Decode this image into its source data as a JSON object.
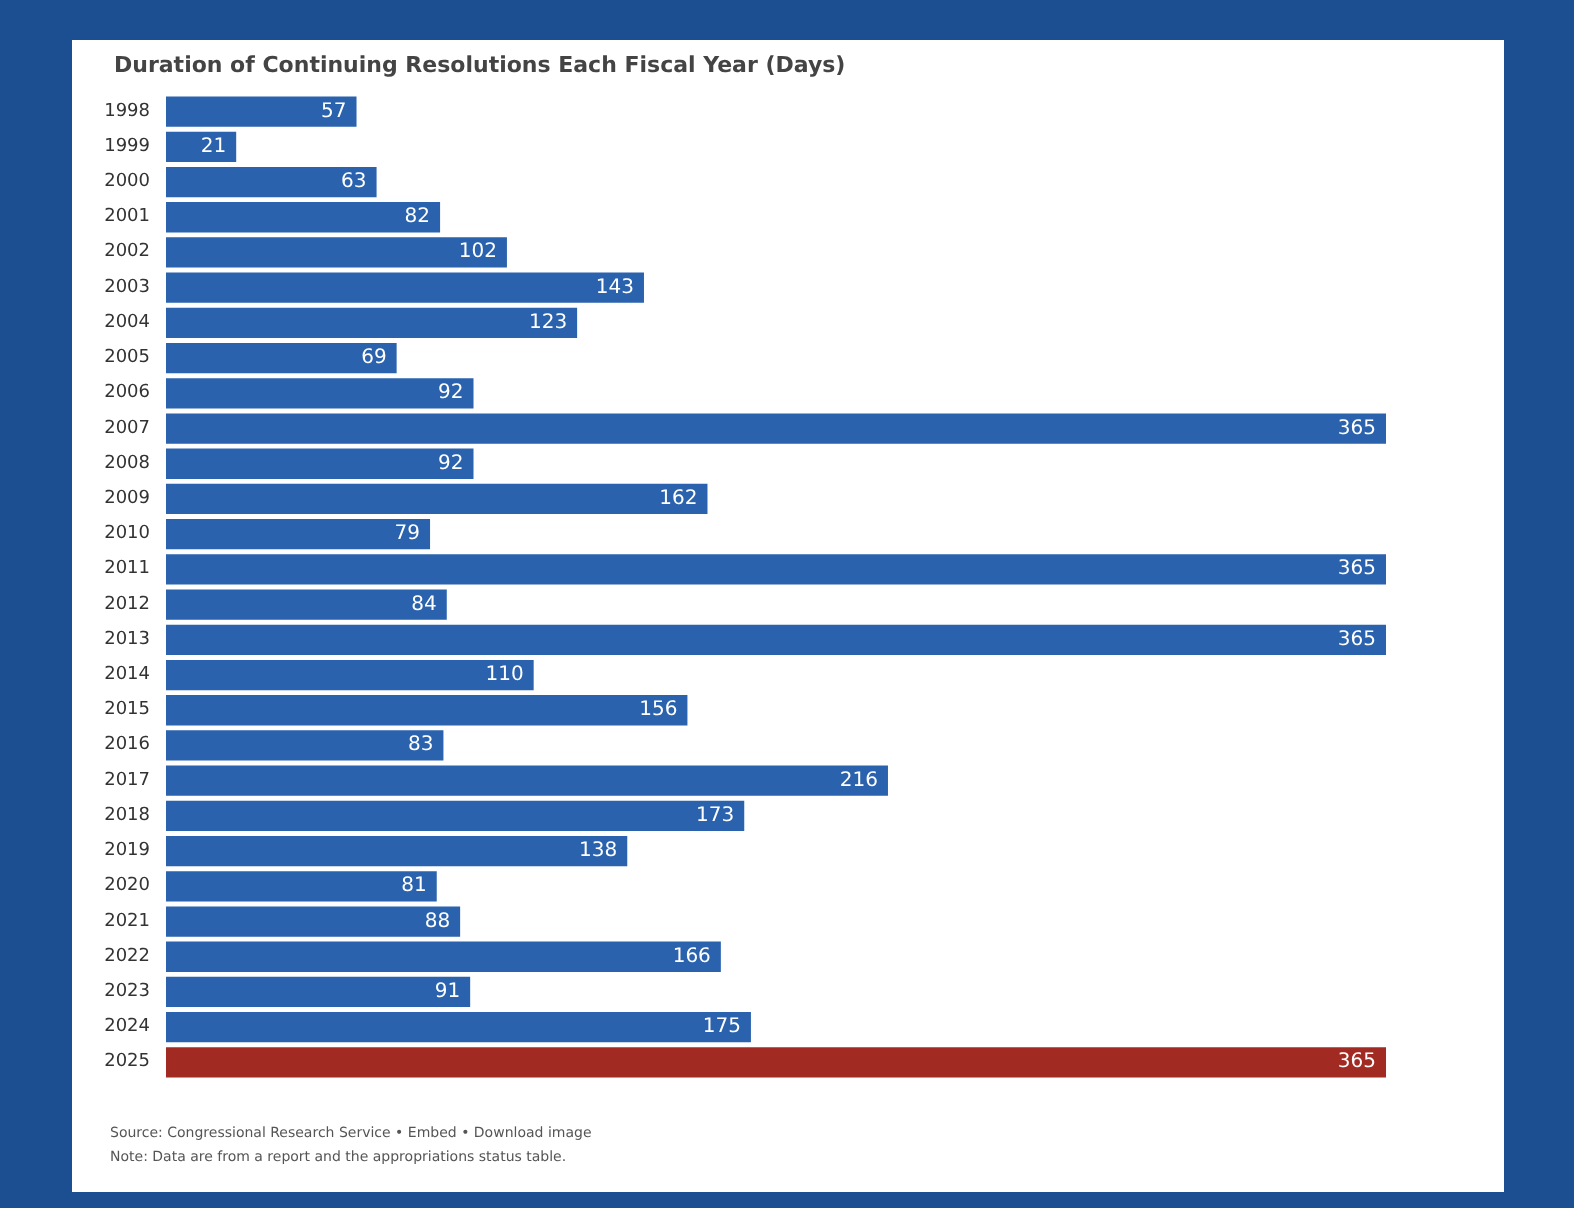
{
  "chart_data": {
    "type": "bar",
    "orientation": "horizontal",
    "title": "Duration of Continuing Resolutions Each Fiscal Year (Days)",
    "categories": [
      "1998",
      "1999",
      "2000",
      "2001",
      "2002",
      "2003",
      "2004",
      "2005",
      "2006",
      "2007",
      "2008",
      "2009",
      "2010",
      "2011",
      "2012",
      "2013",
      "2014",
      "2015",
      "2016",
      "2017",
      "2018",
      "2019",
      "2020",
      "2021",
      "2022",
      "2023",
      "2024",
      "2025"
    ],
    "values": [
      57,
      21,
      63,
      82,
      102,
      143,
      123,
      69,
      92,
      365,
      92,
      162,
      79,
      365,
      84,
      365,
      110,
      156,
      83,
      216,
      173,
      138,
      81,
      88,
      166,
      91,
      175,
      365
    ],
    "colors": [
      "#2a62ad",
      "#2a62ad",
      "#2a62ad",
      "#2a62ad",
      "#2a62ad",
      "#2a62ad",
      "#2a62ad",
      "#2a62ad",
      "#2a62ad",
      "#2a62ad",
      "#2a62ad",
      "#2a62ad",
      "#2a62ad",
      "#2a62ad",
      "#2a62ad",
      "#2a62ad",
      "#2a62ad",
      "#2a62ad",
      "#2a62ad",
      "#2a62ad",
      "#2a62ad",
      "#2a62ad",
      "#2a62ad",
      "#2a62ad",
      "#2a62ad",
      "#2a62ad",
      "#2a62ad",
      "#a12b22"
    ],
    "data_labels": true,
    "annotations": [
      "Source: Congressional Research Service • Embed • Download image",
      "Note: Data are from a report and the appropriations status table."
    ]
  }
}
